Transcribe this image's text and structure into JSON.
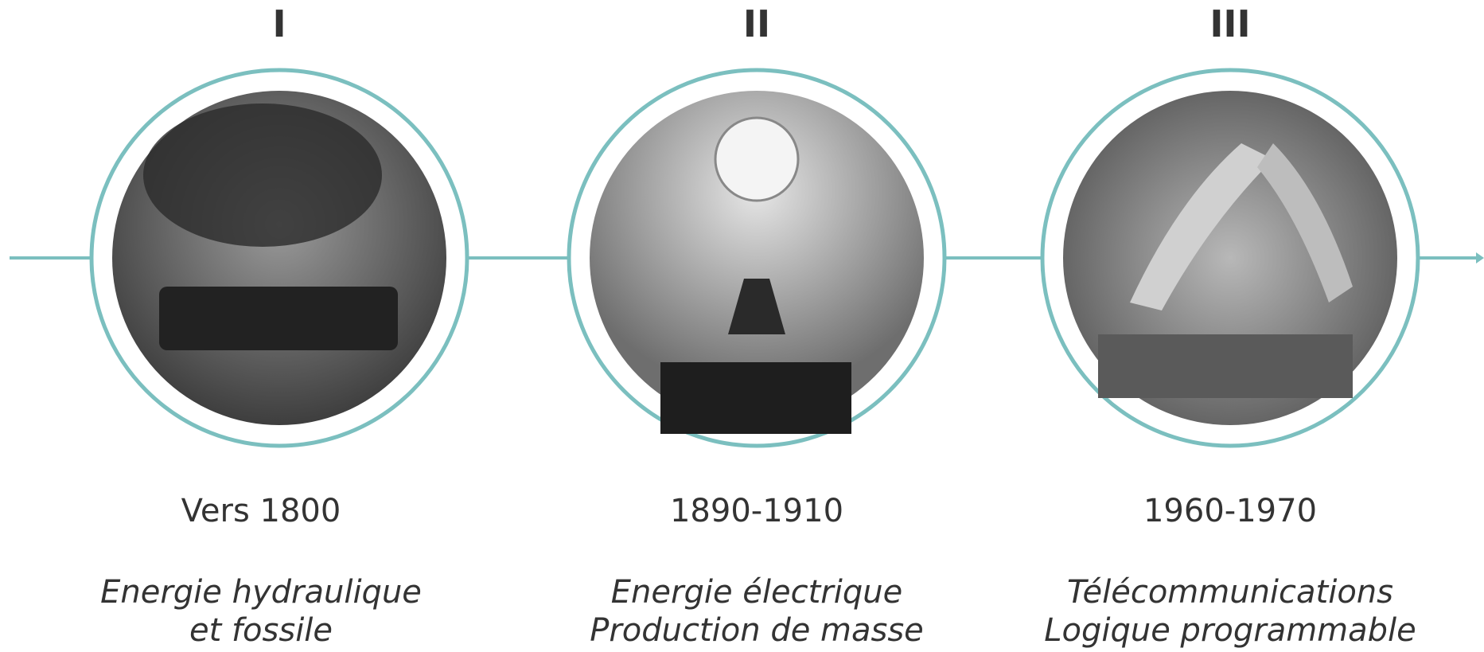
{
  "stages": [
    {
      "numeral": "I",
      "date": "Vers 1800",
      "description": [
        "Energie hydraulique",
        "et fossile"
      ]
    },
    {
      "numeral": "II",
      "date": "1890-1910",
      "description": [
        "Energie électrique",
        "Production de masse"
      ]
    },
    {
      "numeral": "III",
      "date": "1960-1970",
      "description": [
        "Télécommunications",
        "Logique programmable"
      ]
    }
  ]
}
